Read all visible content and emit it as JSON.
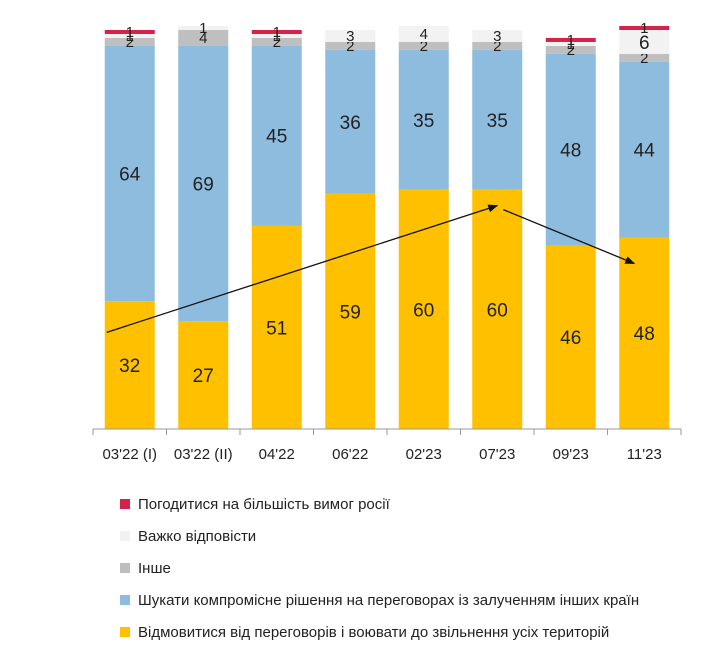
{
  "chart_data": {
    "type": "bar",
    "stacked": true,
    "title": "",
    "xlabel": "",
    "ylabel": "",
    "ylim": [
      0,
      100
    ],
    "categories": [
      "03'22 (I)",
      "03'22 (II)",
      "04'22",
      "06'22",
      "02'23",
      "07'23",
      "09'23",
      "11'23"
    ],
    "series": [
      {
        "name": "Відмовитися від переговорів і воювати до звільнення усіх територій",
        "color": "#FFC000",
        "values": [
          32,
          27,
          51,
          59,
          60,
          60,
          46,
          48
        ]
      },
      {
        "name": "Шукати компромісне рішення на переговорах із залученням інших країн",
        "color": "#8DBCDE",
        "values": [
          64,
          69,
          45,
          36,
          35,
          35,
          48,
          44
        ]
      },
      {
        "name": "Інше",
        "color": "#BFBFBF",
        "values": [
          2,
          4,
          2,
          2,
          2,
          2,
          2,
          2
        ]
      },
      {
        "name": "Важко відповісти",
        "color": "#F2F2F2",
        "values": [
          1,
          1,
          1,
          3,
          4,
          3,
          1,
          6
        ]
      },
      {
        "name": "Погодитися на більшість вимог росії",
        "color": "#D6224A",
        "values": [
          1,
          0,
          1,
          0,
          0,
          0,
          1,
          1
        ]
      }
    ],
    "legend_order": [
      4,
      3,
      2,
      1,
      0
    ],
    "annotations": [
      {
        "type": "trend-arrow",
        "from_category": "03'22 (I)",
        "to_category": "07'23"
      },
      {
        "type": "trend-arrow",
        "from_category": "07'23",
        "to_category": "11'23"
      }
    ]
  }
}
